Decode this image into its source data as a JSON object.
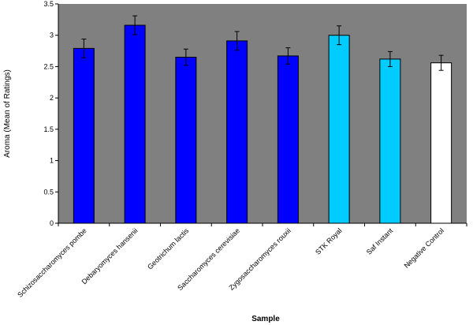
{
  "chart_data": {
    "type": "bar",
    "title": "",
    "xlabel": "Sample",
    "ylabel": "Aroma (Mean of Ratings)",
    "ylim": [
      0,
      3.5
    ],
    "yticks": [
      "0",
      "0.5",
      "1",
      "1.5",
      "2",
      "2.5",
      "3",
      "3.5"
    ],
    "ytick_values": [
      0,
      0.5,
      1,
      1.5,
      2,
      2.5,
      3,
      3.5
    ],
    "grid": false,
    "legend": "none",
    "plot_background": "#808080",
    "categories": [
      "Schizosaccharomyces pombe",
      "Debaryomyces hansenii",
      "Geotrichum lactis",
      "Saccharomyces cerevisiae",
      "Zygosaccharomyces rouxii",
      "STK Royal",
      "Saf Instant",
      "Negative Control"
    ],
    "values": [
      2.79,
      3.16,
      2.65,
      2.91,
      2.67,
      3.0,
      2.62,
      2.56
    ],
    "errors": [
      0.15,
      0.15,
      0.13,
      0.15,
      0.13,
      0.15,
      0.12,
      0.12
    ],
    "bar_colors": [
      "#0000ff",
      "#0000ff",
      "#0000ff",
      "#0000ff",
      "#0000ff",
      "#00ccff",
      "#00ccff",
      "#ffffff"
    ]
  }
}
